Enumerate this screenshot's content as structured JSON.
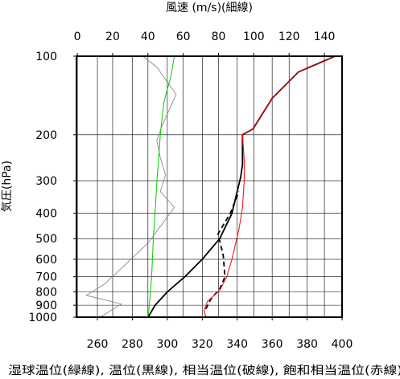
{
  "chart_data": {
    "type": "line",
    "top_axis_title": "風速 (m/s)(細線)",
    "left_axis_title": "気圧(hPa)",
    "bottom_axis_title": "湿球温位(緑線), 温位(黒線), 相当温位(破線), 飽和相当温位(赤線)",
    "wind_axis": {
      "ticks": [
        0,
        20,
        40,
        60,
        80,
        100,
        120,
        140
      ],
      "range": [
        -0.5,
        150
      ]
    },
    "temp_axis": {
      "ticks": [
        260,
        280,
        300,
        320,
        340,
        360,
        380,
        400
      ],
      "range": [
        248,
        400
      ]
    },
    "pressure_axis": {
      "scale": "log",
      "range": [
        1000,
        100
      ],
      "ticks": [
        100,
        200,
        300,
        400,
        500,
        600,
        700,
        800,
        900,
        1000
      ]
    },
    "grid": true,
    "series": [
      {
        "key": "wind_speed",
        "axis": "wind",
        "color": "#808080",
        "dash": false,
        "points": [
          [
            13,
            1000
          ],
          [
            25,
            890
          ],
          [
            5,
            825
          ],
          [
            15,
            750
          ],
          [
            25,
            650
          ],
          [
            40,
            520
          ],
          [
            48,
            440
          ],
          [
            55,
            380
          ],
          [
            47,
            330
          ],
          [
            50,
            285
          ],
          [
            47,
            245
          ],
          [
            45,
            210
          ],
          [
            48,
            185
          ],
          [
            56,
            140
          ],
          [
            45,
            110
          ],
          [
            37,
            100
          ]
        ]
      },
      {
        "key": "wet_bulb_potential_temperature",
        "axis": "temp",
        "color": "#00cc00",
        "dash": false,
        "points": [
          [
            289,
            1000
          ],
          [
            290,
            850
          ],
          [
            291,
            700
          ],
          [
            292,
            500
          ],
          [
            293,
            400
          ],
          [
            294,
            300
          ],
          [
            295,
            250
          ],
          [
            296,
            200
          ],
          [
            298,
            150
          ],
          [
            302,
            120
          ],
          [
            304,
            100
          ]
        ]
      },
      {
        "key": "potential_temperature",
        "axis": "temp",
        "color": "#000000",
        "dash": false,
        "points": [
          [
            289,
            1000
          ],
          [
            293,
            900
          ],
          [
            300,
            800
          ],
          [
            310,
            700
          ],
          [
            320,
            600
          ],
          [
            330,
            500
          ],
          [
            337,
            400
          ],
          [
            340,
            330
          ],
          [
            342,
            290
          ],
          [
            343,
            260
          ],
          [
            343,
            200
          ],
          [
            349,
            190
          ],
          [
            360,
            145
          ],
          [
            375,
            115
          ],
          [
            396,
            100
          ]
        ]
      },
      {
        "key": "equivalent_potential_temperature",
        "axis": "temp",
        "color": "#000000",
        "dash": true,
        "points": [
          [
            322,
            930
          ],
          [
            325,
            850
          ],
          [
            330,
            780
          ],
          [
            333,
            700
          ],
          [
            332,
            580
          ],
          [
            329,
            480
          ],
          [
            336,
            400
          ],
          [
            341,
            330
          ]
        ]
      },
      {
        "key": "saturated_equivalent_potential_temperature",
        "axis": "temp",
        "color": "#ff0000",
        "dash": false,
        "points": [
          [
            322,
            1000
          ],
          [
            321,
            940
          ],
          [
            323,
            870
          ],
          [
            330,
            790
          ],
          [
            334,
            700
          ],
          [
            337,
            600
          ],
          [
            341,
            460
          ],
          [
            343,
            380
          ],
          [
            344,
            300
          ],
          [
            344,
            250
          ],
          [
            343,
            200
          ],
          [
            349,
            190
          ],
          [
            360,
            145
          ],
          [
            375,
            115
          ],
          [
            396,
            100
          ]
        ]
      }
    ]
  }
}
